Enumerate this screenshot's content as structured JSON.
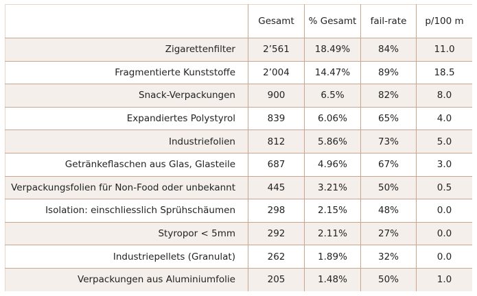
{
  "table": {
    "columns": [
      "",
      "Gesamt",
      "% Gesamt",
      "fail-rate",
      "p/100 m"
    ],
    "rows": [
      {
        "label": "Zigarettenfilter",
        "gesamt": "2’561",
        "pct": "18.49%",
        "fail": "84%",
        "p100": "11.0"
      },
      {
        "label": "Fragmentierte Kunststoffe",
        "gesamt": "2’004",
        "pct": "14.47%",
        "fail": "89%",
        "p100": "18.5"
      },
      {
        "label": "Snack-Verpackungen",
        "gesamt": "900",
        "pct": "6.5%",
        "fail": "82%",
        "p100": "8.0"
      },
      {
        "label": "Expandiertes Polystyrol",
        "gesamt": "839",
        "pct": "6.06%",
        "fail": "65%",
        "p100": "4.0"
      },
      {
        "label": "Industriefolien",
        "gesamt": "812",
        "pct": "5.86%",
        "fail": "73%",
        "p100": "5.0"
      },
      {
        "label": "Getränkeflaschen aus Glas, Glasteile",
        "gesamt": "687",
        "pct": "4.96%",
        "fail": "67%",
        "p100": "3.0"
      },
      {
        "label": "Verpackungsfolien für Non-Food oder unbekannt",
        "gesamt": "445",
        "pct": "3.21%",
        "fail": "50%",
        "p100": "0.5"
      },
      {
        "label": "Isolation: einschliesslich Sprühschäumen",
        "gesamt": "298",
        "pct": "2.15%",
        "fail": "48%",
        "p100": "0.0"
      },
      {
        "label": "Styropor < 5mm",
        "gesamt": "292",
        "pct": "2.11%",
        "fail": "27%",
        "p100": "0.0"
      },
      {
        "label": "Industriepellets (Granulat)",
        "gesamt": "262",
        "pct": "1.89%",
        "fail": "32%",
        "p100": "0.0"
      },
      {
        "label": "Verpackungen aus Aluminiumfolie",
        "gesamt": "205",
        "pct": "1.48%",
        "fail": "50%",
        "p100": "1.0"
      }
    ]
  }
}
